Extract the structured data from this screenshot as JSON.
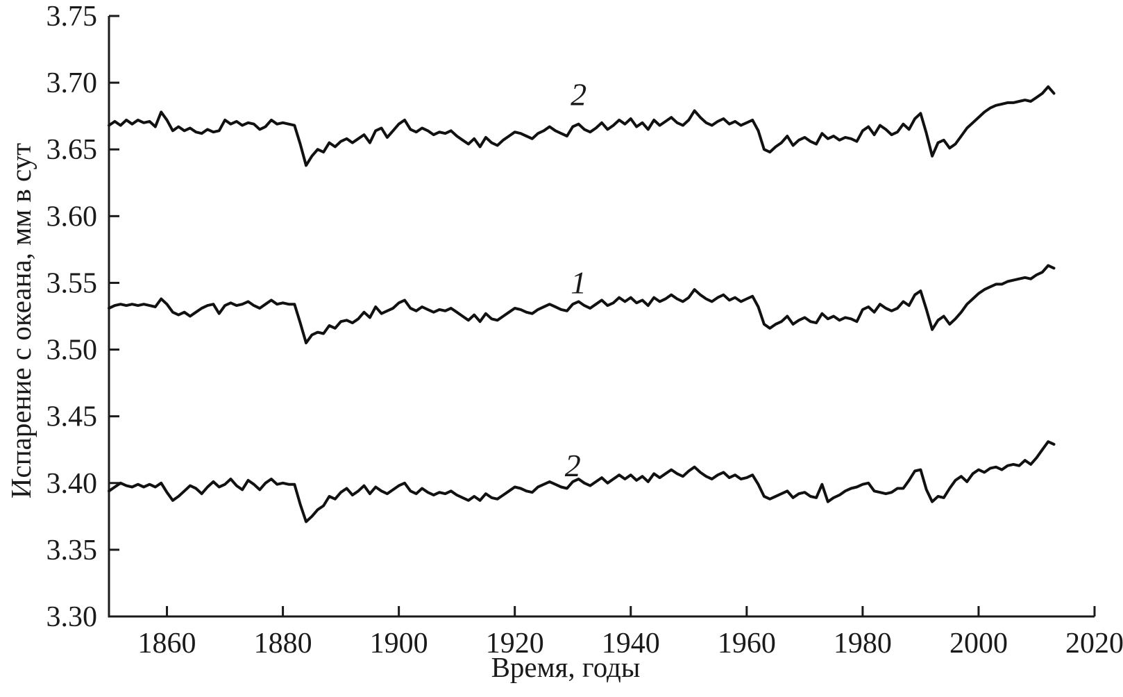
{
  "page": {
    "background": "#ffffff",
    "ink_color": "#1a1a1a"
  },
  "chart_data": {
    "type": "line",
    "title": "",
    "xlabel": "Время, годы",
    "ylabel": "Испарение с океана, мм в сут",
    "xlim": [
      1850,
      2020
    ],
    "ylim": [
      3.3,
      3.75
    ],
    "x_ticks": [
      1860,
      1880,
      1900,
      1920,
      1940,
      1960,
      1980,
      2000,
      2020
    ],
    "x_tick_labels": [
      "1860",
      "1880",
      "1900",
      "1920",
      "1940",
      "1960",
      "1980",
      "2000",
      "2020"
    ],
    "y_ticks": [
      3.3,
      3.35,
      3.4,
      3.45,
      3.5,
      3.55,
      3.6,
      3.65,
      3.7,
      3.75
    ],
    "y_tick_labels": [
      "3.30",
      "3.35",
      "3.40",
      "3.45",
      "3.50",
      "3.55",
      "3.60",
      "3.65",
      "3.70",
      "3.75"
    ],
    "grid": false,
    "legend_position": "inline-curve-labels",
    "line_color": "#111111",
    "years": [
      1850,
      1851,
      1852,
      1853,
      1854,
      1855,
      1856,
      1857,
      1858,
      1859,
      1860,
      1861,
      1862,
      1863,
      1864,
      1865,
      1866,
      1867,
      1868,
      1869,
      1870,
      1871,
      1872,
      1873,
      1874,
      1875,
      1876,
      1877,
      1878,
      1879,
      1880,
      1881,
      1882,
      1883,
      1884,
      1885,
      1886,
      1887,
      1888,
      1889,
      1890,
      1891,
      1892,
      1893,
      1894,
      1895,
      1896,
      1897,
      1898,
      1899,
      1900,
      1901,
      1902,
      1903,
      1904,
      1905,
      1906,
      1907,
      1908,
      1909,
      1910,
      1911,
      1912,
      1913,
      1914,
      1915,
      1916,
      1917,
      1918,
      1919,
      1920,
      1921,
      1922,
      1923,
      1924,
      1925,
      1926,
      1927,
      1928,
      1929,
      1930,
      1931,
      1932,
      1933,
      1934,
      1935,
      1936,
      1937,
      1938,
      1939,
      1940,
      1941,
      1942,
      1943,
      1944,
      1945,
      1946,
      1947,
      1948,
      1949,
      1950,
      1951,
      1952,
      1953,
      1954,
      1955,
      1956,
      1957,
      1958,
      1959,
      1960,
      1961,
      1962,
      1963,
      1964,
      1965,
      1966,
      1967,
      1968,
      1969,
      1970,
      1971,
      1972,
      1973,
      1974,
      1975,
      1976,
      1977,
      1978,
      1979,
      1980,
      1981,
      1982,
      1983,
      1984,
      1985,
      1986,
      1987,
      1988,
      1989,
      1990,
      1991,
      1992,
      1993,
      1994,
      1995,
      1996,
      1997,
      1998,
      1999,
      2000,
      2001,
      2002,
      2003,
      2004,
      2005,
      2006,
      2007,
      2008,
      2009,
      2010,
      2011,
      2012,
      2013
    ],
    "series": [
      {
        "label": "2",
        "position": "upper",
        "label_at": {
          "year": 1931,
          "value": 3.691
        },
        "values": [
          3.668,
          3.671,
          3.668,
          3.672,
          3.669,
          3.672,
          3.67,
          3.671,
          3.667,
          3.678,
          3.672,
          3.664,
          3.667,
          3.664,
          3.666,
          3.663,
          3.662,
          3.665,
          3.663,
          3.664,
          3.672,
          3.669,
          3.671,
          3.668,
          3.67,
          3.669,
          3.665,
          3.667,
          3.672,
          3.669,
          3.67,
          3.669,
          3.668,
          3.654,
          3.638,
          3.645,
          3.65,
          3.648,
          3.655,
          3.652,
          3.656,
          3.658,
          3.655,
          3.658,
          3.661,
          3.655,
          3.664,
          3.666,
          3.659,
          3.664,
          3.669,
          3.672,
          3.665,
          3.663,
          3.666,
          3.664,
          3.661,
          3.663,
          3.662,
          3.664,
          3.66,
          3.657,
          3.654,
          3.658,
          3.652,
          3.659,
          3.655,
          3.653,
          3.657,
          3.66,
          3.663,
          3.662,
          3.66,
          3.658,
          3.662,
          3.664,
          3.667,
          3.664,
          3.662,
          3.66,
          3.667,
          3.669,
          3.665,
          3.663,
          3.666,
          3.67,
          3.665,
          3.668,
          3.672,
          3.669,
          3.673,
          3.667,
          3.67,
          3.665,
          3.672,
          3.668,
          3.671,
          3.674,
          3.67,
          3.668,
          3.672,
          3.679,
          3.674,
          3.67,
          3.668,
          3.671,
          3.673,
          3.669,
          3.671,
          3.668,
          3.67,
          3.672,
          3.664,
          3.65,
          3.648,
          3.652,
          3.655,
          3.66,
          3.653,
          3.657,
          3.659,
          3.656,
          3.654,
          3.662,
          3.658,
          3.66,
          3.657,
          3.659,
          3.658,
          3.656,
          3.664,
          3.667,
          3.661,
          3.668,
          3.665,
          3.661,
          3.663,
          3.669,
          3.665,
          3.673,
          3.677,
          3.662,
          3.645,
          3.655,
          3.657,
          3.651,
          3.654,
          3.66,
          3.666,
          3.67,
          3.674,
          3.678,
          3.681,
          3.683,
          3.684,
          3.685,
          3.685,
          3.686,
          3.687,
          3.686,
          3.689,
          3.692,
          3.697,
          3.692
        ]
      },
      {
        "label": "1",
        "position": "middle",
        "label_at": {
          "year": 1931,
          "value": 3.55
        },
        "values": [
          3.531,
          3.533,
          3.534,
          3.533,
          3.534,
          3.533,
          3.534,
          3.533,
          3.532,
          3.538,
          3.534,
          3.528,
          3.526,
          3.528,
          3.525,
          3.528,
          3.531,
          3.533,
          3.534,
          3.527,
          3.533,
          3.535,
          3.533,
          3.534,
          3.536,
          3.533,
          3.531,
          3.534,
          3.537,
          3.534,
          3.535,
          3.534,
          3.534,
          3.52,
          3.505,
          3.511,
          3.513,
          3.512,
          3.518,
          3.516,
          3.521,
          3.522,
          3.52,
          3.523,
          3.528,
          3.524,
          3.532,
          3.527,
          3.529,
          3.531,
          3.535,
          3.537,
          3.531,
          3.529,
          3.532,
          3.53,
          3.528,
          3.53,
          3.529,
          3.531,
          3.528,
          3.525,
          3.522,
          3.526,
          3.521,
          3.527,
          3.523,
          3.522,
          3.525,
          3.528,
          3.531,
          3.53,
          3.528,
          3.527,
          3.53,
          3.532,
          3.534,
          3.532,
          3.53,
          3.529,
          3.534,
          3.536,
          3.533,
          3.531,
          3.534,
          3.537,
          3.533,
          3.535,
          3.539,
          3.536,
          3.539,
          3.535,
          3.537,
          3.533,
          3.539,
          3.536,
          3.538,
          3.541,
          3.538,
          3.536,
          3.539,
          3.545,
          3.541,
          3.538,
          3.536,
          3.539,
          3.541,
          3.537,
          3.539,
          3.536,
          3.538,
          3.54,
          3.532,
          3.519,
          3.516,
          3.519,
          3.521,
          3.525,
          3.519,
          3.522,
          3.524,
          3.521,
          3.52,
          3.527,
          3.523,
          3.525,
          3.522,
          3.524,
          3.523,
          3.521,
          3.53,
          3.532,
          3.528,
          3.534,
          3.531,
          3.529,
          3.531,
          3.536,
          3.533,
          3.541,
          3.544,
          3.53,
          3.515,
          3.522,
          3.525,
          3.519,
          3.523,
          3.528,
          3.534,
          3.538,
          3.542,
          3.545,
          3.547,
          3.549,
          3.549,
          3.551,
          3.552,
          3.553,
          3.554,
          3.553,
          3.556,
          3.558,
          3.563,
          3.561
        ]
      },
      {
        "label": "2",
        "position": "lower",
        "label_at": {
          "year": 1930,
          "value": 3.413
        },
        "values": [
          3.394,
          3.397,
          3.4,
          3.398,
          3.397,
          3.399,
          3.397,
          3.399,
          3.397,
          3.4,
          3.393,
          3.387,
          3.39,
          3.394,
          3.398,
          3.396,
          3.392,
          3.397,
          3.401,
          3.397,
          3.399,
          3.403,
          3.398,
          3.395,
          3.402,
          3.399,
          3.395,
          3.4,
          3.403,
          3.399,
          3.4,
          3.399,
          3.399,
          3.384,
          3.371,
          3.375,
          3.38,
          3.383,
          3.39,
          3.388,
          3.393,
          3.396,
          3.391,
          3.394,
          3.398,
          3.392,
          3.397,
          3.394,
          3.392,
          3.395,
          3.398,
          3.4,
          3.394,
          3.392,
          3.396,
          3.393,
          3.391,
          3.393,
          3.392,
          3.394,
          3.391,
          3.389,
          3.387,
          3.39,
          3.387,
          3.392,
          3.389,
          3.388,
          3.391,
          3.394,
          3.397,
          3.396,
          3.394,
          3.393,
          3.397,
          3.399,
          3.401,
          3.399,
          3.397,
          3.396,
          3.401,
          3.403,
          3.4,
          3.398,
          3.401,
          3.404,
          3.4,
          3.403,
          3.406,
          3.403,
          3.406,
          3.402,
          3.405,
          3.401,
          3.407,
          3.404,
          3.407,
          3.41,
          3.407,
          3.405,
          3.409,
          3.412,
          3.408,
          3.405,
          3.403,
          3.406,
          3.408,
          3.404,
          3.406,
          3.403,
          3.404,
          3.406,
          3.399,
          3.39,
          3.388,
          3.39,
          3.392,
          3.394,
          3.389,
          3.392,
          3.393,
          3.39,
          3.389,
          3.399,
          3.386,
          3.389,
          3.391,
          3.394,
          3.396,
          3.397,
          3.399,
          3.4,
          3.394,
          3.393,
          3.392,
          3.393,
          3.396,
          3.396,
          3.402,
          3.409,
          3.41,
          3.395,
          3.386,
          3.39,
          3.389,
          3.396,
          3.402,
          3.405,
          3.401,
          3.407,
          3.41,
          3.408,
          3.411,
          3.412,
          3.41,
          3.413,
          3.414,
          3.413,
          3.417,
          3.414,
          3.419,
          3.425,
          3.431,
          3.429
        ]
      }
    ]
  }
}
